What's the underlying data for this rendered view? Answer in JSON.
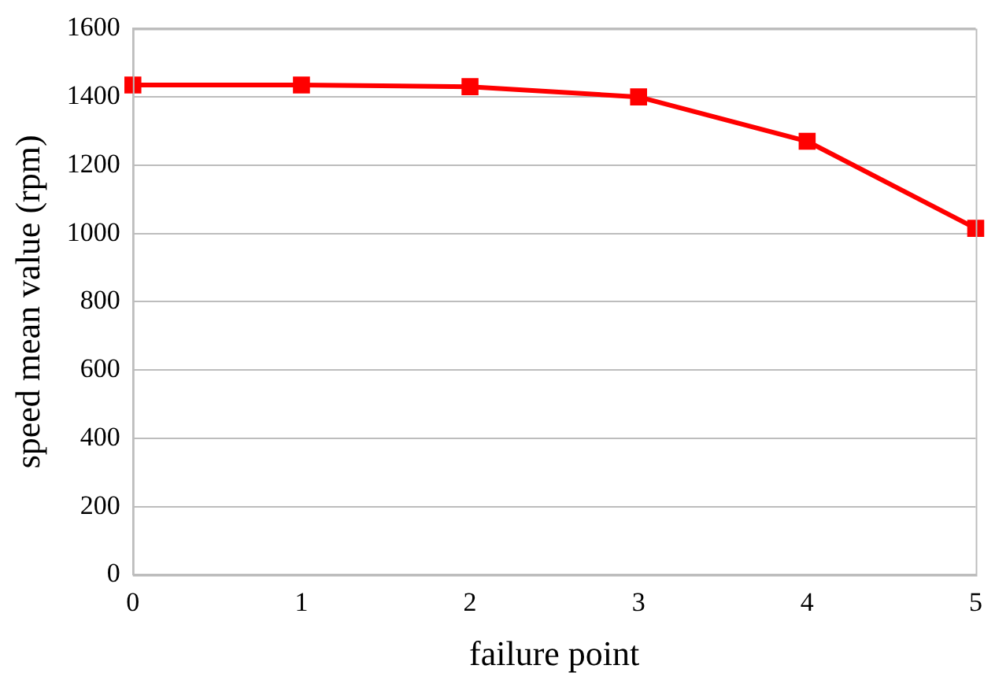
{
  "chart_data": {
    "type": "line",
    "xlabel": "failure point",
    "ylabel": "speed mean value (rpm)",
    "x": [
      0,
      1,
      2,
      3,
      4,
      5
    ],
    "series": [
      {
        "color": "#ff0000",
        "values": [
          1435,
          1435,
          1430,
          1400,
          1270,
          1015
        ]
      }
    ],
    "xlim": [
      0,
      5
    ],
    "xticks": [
      0,
      1,
      2,
      3,
      4,
      5
    ],
    "ylim": [
      0,
      1600
    ],
    "yticks": [
      0,
      200,
      400,
      600,
      800,
      1000,
      1200,
      1400,
      1600
    ],
    "grid": "y",
    "legend": false,
    "marker": "square",
    "line_style": "solid"
  }
}
